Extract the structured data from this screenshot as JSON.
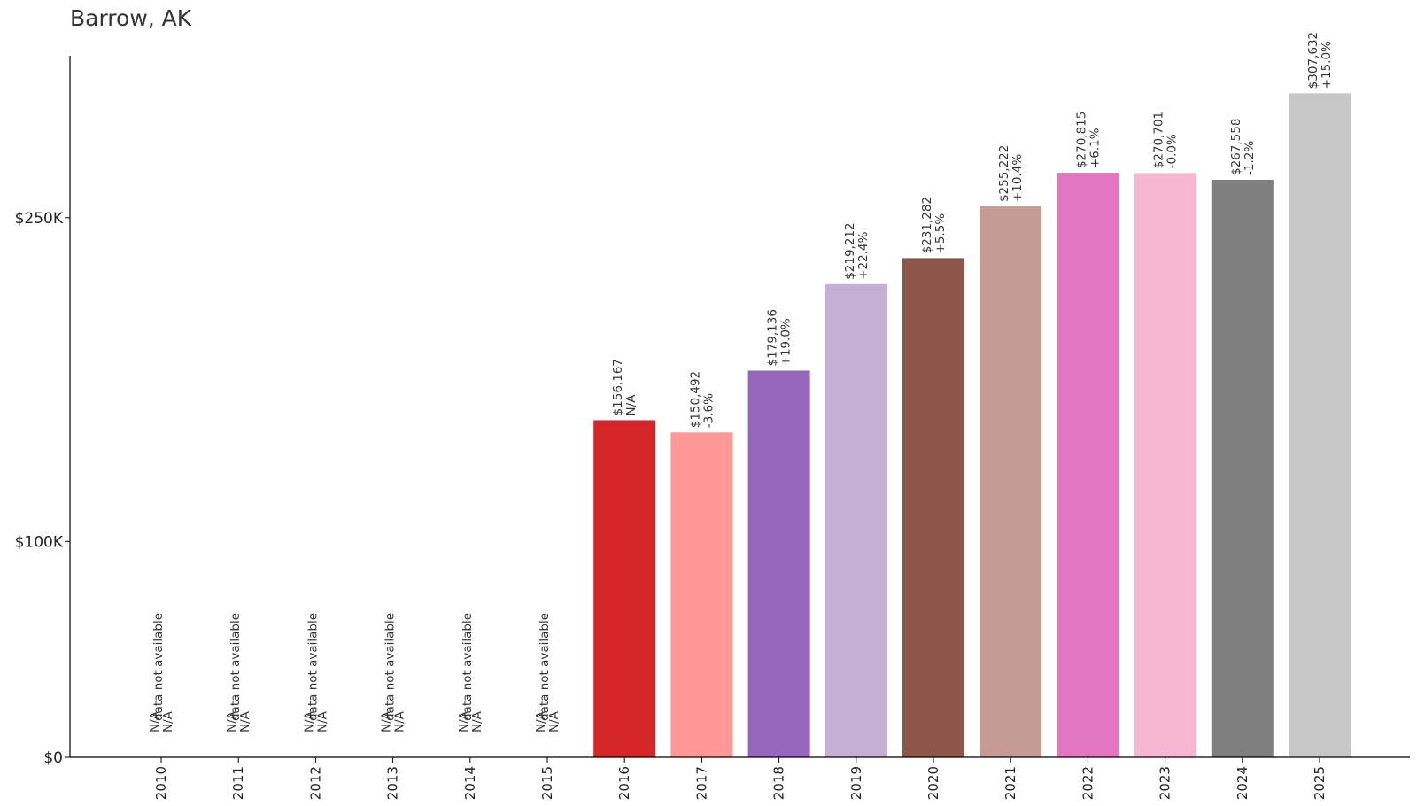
{
  "chart_data": {
    "type": "bar",
    "title": "Barrow, AK",
    "xlabel": "",
    "ylabel": "",
    "categories": [
      "2010",
      "2011",
      "2012",
      "2013",
      "2014",
      "2015",
      "2016",
      "2017",
      "2018",
      "2019",
      "2020",
      "2021",
      "2022",
      "2023",
      "2024",
      "2025"
    ],
    "values": [
      null,
      null,
      null,
      null,
      null,
      null,
      156167,
      150492,
      179136,
      219212,
      231282,
      255222,
      270815,
      270701,
      267558,
      307632
    ],
    "value_labels": [
      "N/A",
      "N/A",
      "N/A",
      "N/A",
      "N/A",
      "N/A",
      "$156,167",
      "$150,492",
      "$179,136",
      "$219,212",
      "$231,282",
      "$255,222",
      "$270,815",
      "$270,701",
      "$267,558",
      "$307,632"
    ],
    "change_labels": [
      "N/A",
      "N/A",
      "N/A",
      "N/A",
      "N/A",
      "N/A",
      "N/A",
      "-3.6%",
      "+19.0%",
      "+22.4%",
      "+5.5%",
      "+10.4%",
      "+6.1%",
      "-0.0%",
      "-1.2%",
      "+15.0%"
    ],
    "missing_note": "data not available",
    "colors": [
      "#1f77b4",
      "#aec7e8",
      "#ff7f0e",
      "#ffbb78",
      "#2ca02c",
      "#98df8a",
      "#d62728",
      "#ff9896",
      "#9467bd",
      "#c5b0d5",
      "#8c564b",
      "#c49c94",
      "#e377c2",
      "#f7b6d2",
      "#7f7f7f",
      "#c7c7c7"
    ],
    "yticks": [
      0,
      100000,
      250000
    ],
    "ytick_labels": [
      "$0",
      "$100K",
      "$250K"
    ],
    "ylim": [
      0,
      325000
    ],
    "grid": false,
    "legend": "none"
  }
}
